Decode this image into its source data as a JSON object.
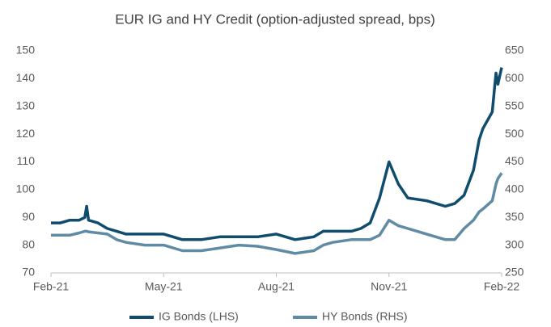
{
  "chart_data": {
    "type": "line",
    "title": "EUR IG and HY Credit (option-adjusted spread, bps)",
    "x": [
      0,
      0.25,
      0.5,
      0.75,
      0.9,
      0.95,
      1.0,
      1.25,
      1.5,
      1.75,
      2,
      2.5,
      3,
      3.5,
      4,
      4.5,
      5,
      5.5,
      6,
      6.5,
      7,
      7.25,
      7.5,
      8,
      8.25,
      8.5,
      8.75,
      9,
      9.25,
      9.5,
      10,
      10.5,
      10.75,
      11,
      11.25,
      11.4,
      11.5,
      11.75,
      11.85,
      11.9,
      12
    ],
    "xlim": [
      0,
      12
    ],
    "xticks": [
      {
        "value": 0,
        "label": "Feb-21"
      },
      {
        "value": 3,
        "label": "May-21"
      },
      {
        "value": 6,
        "label": "Aug-21"
      },
      {
        "value": 9,
        "label": "Nov-21"
      },
      {
        "value": 12,
        "label": "Feb-22"
      }
    ],
    "ylim": [
      70,
      150
    ],
    "yticks": [
      70,
      80,
      90,
      100,
      110,
      120,
      130,
      140,
      150
    ],
    "y2lim": [
      250,
      650
    ],
    "y2ticks": [
      250,
      300,
      350,
      400,
      450,
      500,
      550,
      600,
      650
    ],
    "legend": "bottom",
    "series": [
      {
        "name": "IG Bonds (LHS)",
        "color": "#0f4c6e",
        "axis": "y",
        "values": [
          88,
          88,
          89,
          89,
          90,
          94,
          89,
          88,
          86,
          85,
          84,
          84,
          84,
          82,
          82,
          83,
          83,
          83,
          84,
          82,
          83,
          85,
          85,
          85,
          86,
          88,
          97,
          110,
          102,
          97,
          96,
          94,
          95,
          98,
          107,
          118,
          122,
          128,
          142,
          138,
          144
        ]
      },
      {
        "name": "HY Bonds (RHS)",
        "color": "#5f8ba4",
        "axis": "y2",
        "values": [
          318,
          318,
          318,
          322,
          325,
          325,
          324,
          322,
          320,
          310,
          305,
          300,
          300,
          290,
          290,
          295,
          300,
          298,
          292,
          285,
          290,
          300,
          305,
          310,
          310,
          310,
          318,
          345,
          335,
          330,
          320,
          310,
          310,
          330,
          345,
          360,
          365,
          380,
          410,
          420,
          430
        ]
      }
    ]
  }
}
